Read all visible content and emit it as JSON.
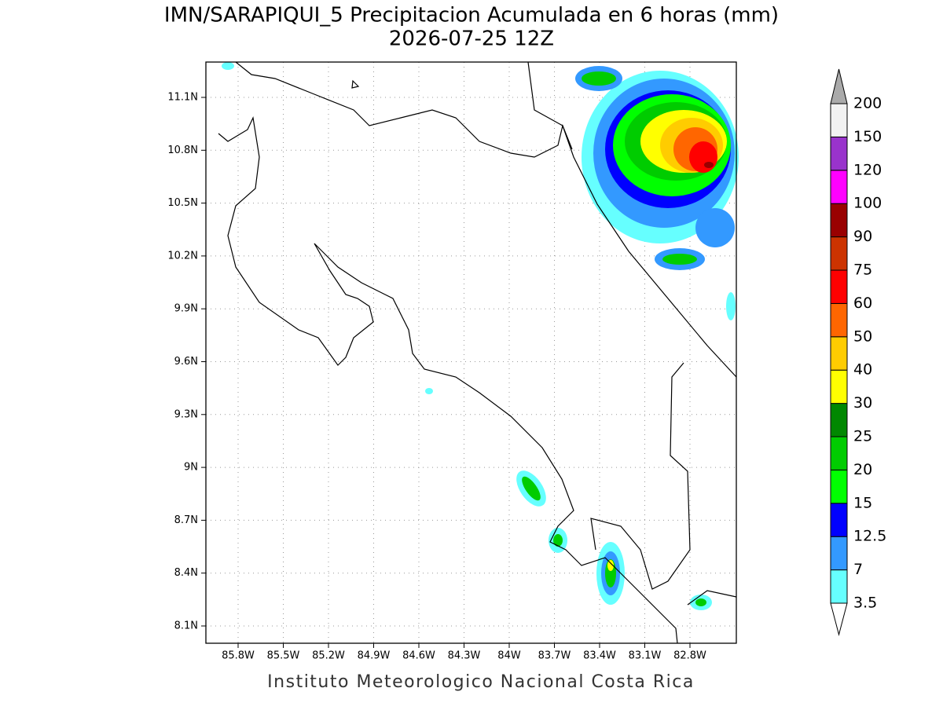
{
  "map": {
    "title": "IMN/SARAPIQUI_5 Precipitacion Acumulada en 6 horas (mm)",
    "subtitle": "2026-07-25 12Z",
    "footer": "Instituto Meteorologico Nacional Costa Rica",
    "lon_ticks": [
      {
        "value": -85.8,
        "label": "85.8W"
      },
      {
        "value": -85.5,
        "label": "85.5W"
      },
      {
        "value": -85.2,
        "label": "85.2W"
      },
      {
        "value": -84.9,
        "label": "84.9W"
      },
      {
        "value": -84.6,
        "label": "84.6W"
      },
      {
        "value": -84.3,
        "label": "84.3W"
      },
      {
        "value": -84.0,
        "label": "84W"
      },
      {
        "value": -83.7,
        "label": "83.7W"
      },
      {
        "value": -83.4,
        "label": "83.4W"
      },
      {
        "value": -83.1,
        "label": "83.1W"
      },
      {
        "value": -82.8,
        "label": "82.8W"
      }
    ],
    "lat_ticks": [
      {
        "value": 11.1,
        "label": "11.1N"
      },
      {
        "value": 10.8,
        "label": "10.8N"
      },
      {
        "value": 10.5,
        "label": "10.5N"
      },
      {
        "value": 10.2,
        "label": "10.2N"
      },
      {
        "value": 9.9,
        "label": "9.9N"
      },
      {
        "value": 9.6,
        "label": "9.6N"
      },
      {
        "value": 9.3,
        "label": "9.3N"
      },
      {
        "value": 9.0,
        "label": "9N"
      },
      {
        "value": 8.7,
        "label": "8.7N"
      },
      {
        "value": 8.4,
        "label": "8.4N"
      },
      {
        "value": 8.1,
        "label": "8.1N"
      }
    ],
    "colorbar": {
      "levels": [
        3.5,
        7,
        12.5,
        15,
        20,
        25,
        30,
        40,
        50,
        60,
        75,
        90,
        100,
        120,
        150,
        200
      ],
      "colors": [
        "#66ffff",
        "#3399ff",
        "#0000ff",
        "#00ff00",
        "#00cc00",
        "#008800",
        "#ffff00",
        "#ffcc00",
        "#ff6600",
        "#ff0000",
        "#cc3300",
        "#990000",
        "#ff00ff",
        "#9933cc",
        "#f2f2f2"
      ],
      "under_color": "#ffffff",
      "over_color": "#aaaaaa"
    }
  }
}
